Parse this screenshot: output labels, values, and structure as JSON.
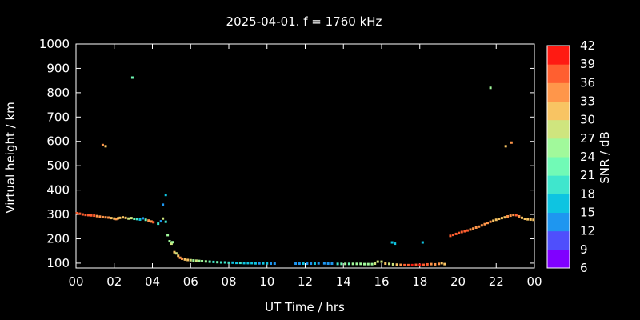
{
  "chart_data": {
    "type": "scatter",
    "title": "2025-04-01. f = 1760 kHz",
    "xlabel": "UT Time / hrs",
    "ylabel": "Virtual height / km",
    "colorbar_label": "SNR / dB",
    "xlim": [
      0,
      24
    ],
    "ylim": [
      80,
      1000
    ],
    "x_ticks": [
      "00",
      "02",
      "04",
      "06",
      "08",
      "10",
      "12",
      "14",
      "16",
      "18",
      "20",
      "22",
      "00"
    ],
    "y_ticks": [
      "100",
      "200",
      "300",
      "400",
      "500",
      "600",
      "700",
      "800",
      "900",
      "1000"
    ],
    "colorbar_ticks": [
      "6",
      "9",
      "12",
      "15",
      "18",
      "21",
      "24",
      "27",
      "30",
      "33",
      "36",
      "39",
      "42"
    ],
    "colorbar_colors": [
      "#8000ff",
      "#4f4ffc",
      "#1e96f0",
      "#0ec4e1",
      "#3fe6cd",
      "#71fab6",
      "#a1f99b",
      "#cfe57e",
      "#f8c463",
      "#ff964a",
      "#ff5f30",
      "#ff1a12"
    ],
    "grid": false,
    "series": [
      {
        "values_note": "x = UT hours, y = virtual height km, snr = dB",
        "points": [
          [
            0.05,
            305,
            37
          ],
          [
            0.2,
            303,
            38
          ],
          [
            0.35,
            300,
            38
          ],
          [
            0.5,
            298,
            37
          ],
          [
            0.65,
            297,
            37
          ],
          [
            0.8,
            296,
            36
          ],
          [
            0.95,
            295,
            36
          ],
          [
            1.1,
            293,
            35
          ],
          [
            1.25,
            291,
            34
          ],
          [
            1.4,
            289,
            34
          ],
          [
            1.55,
            288,
            33
          ],
          [
            1.7,
            287,
            33
          ],
          [
            1.85,
            285,
            32
          ],
          [
            2.0,
            283,
            32
          ],
          [
            2.1,
            281,
            33
          ],
          [
            2.2,
            284,
            31
          ],
          [
            2.3,
            286,
            30
          ],
          [
            2.45,
            288,
            31
          ],
          [
            2.6,
            286,
            30
          ],
          [
            2.75,
            283,
            29
          ],
          [
            2.9,
            285,
            28
          ],
          [
            3.05,
            282,
            22
          ],
          [
            3.2,
            281,
            19
          ],
          [
            3.35,
            279,
            16
          ],
          [
            3.5,
            284,
            14
          ],
          [
            3.65,
            278,
            21
          ],
          [
            3.8,
            275,
            33
          ],
          [
            3.95,
            271,
            35
          ],
          [
            4.05,
            268,
            37
          ],
          [
            4.3,
            262,
            18
          ],
          [
            4.45,
            272,
            13
          ],
          [
            4.55,
            283,
            27
          ],
          [
            4.7,
            270,
            20
          ],
          [
            4.8,
            215,
            24
          ],
          [
            4.9,
            190,
            26
          ],
          [
            5.0,
            180,
            28
          ],
          [
            5.05,
            186,
            25
          ],
          [
            5.15,
            145,
            30
          ],
          [
            5.25,
            140,
            27
          ],
          [
            5.35,
            130,
            32
          ],
          [
            5.45,
            122,
            35
          ],
          [
            5.55,
            118,
            33
          ],
          [
            5.7,
            115,
            31
          ],
          [
            5.85,
            113,
            30
          ],
          [
            6.0,
            112,
            28
          ],
          [
            6.15,
            111,
            26
          ],
          [
            6.3,
            110,
            27
          ],
          [
            6.45,
            109,
            25
          ],
          [
            6.6,
            108,
            24
          ],
          [
            6.8,
            107,
            25
          ],
          [
            7.0,
            106,
            22
          ],
          [
            7.2,
            105,
            20
          ],
          [
            7.4,
            104,
            21
          ],
          [
            7.6,
            103,
            19
          ],
          [
            7.8,
            103,
            20
          ],
          [
            8.0,
            102,
            18
          ],
          [
            8.2,
            102,
            17
          ],
          [
            8.4,
            101,
            16
          ],
          [
            8.6,
            101,
            18
          ],
          [
            8.8,
            100,
            15
          ],
          [
            9.0,
            100,
            17
          ],
          [
            9.2,
            100,
            16
          ],
          [
            9.4,
            99,
            15
          ],
          [
            9.6,
            99,
            14
          ],
          [
            9.8,
            99,
            16
          ],
          [
            10.0,
            99,
            15
          ],
          [
            10.2,
            98,
            14
          ],
          [
            10.4,
            98,
            13
          ],
          [
            11.5,
            98,
            14
          ],
          [
            11.7,
            98,
            13
          ],
          [
            11.9,
            98,
            15
          ],
          [
            12.1,
            98,
            14
          ],
          [
            12.3,
            98,
            13
          ],
          [
            12.5,
            98,
            15
          ],
          [
            12.7,
            99,
            12
          ],
          [
            13.0,
            99,
            13
          ],
          [
            13.2,
            98,
            14
          ],
          [
            13.4,
            98,
            12
          ],
          [
            13.7,
            97,
            20
          ],
          [
            13.9,
            97,
            22
          ],
          [
            14.1,
            97,
            24
          ],
          [
            14.3,
            97,
            23
          ],
          [
            14.5,
            97,
            25
          ],
          [
            14.7,
            97,
            24
          ],
          [
            14.9,
            97,
            26
          ],
          [
            15.1,
            96,
            25
          ],
          [
            15.3,
            96,
            24
          ],
          [
            15.5,
            96,
            26
          ],
          [
            15.65,
            98,
            27
          ],
          [
            15.8,
            106,
            29
          ],
          [
            16.0,
            106,
            28
          ],
          [
            16.2,
            98,
            30
          ],
          [
            16.4,
            97,
            28
          ],
          [
            16.6,
            95,
            29
          ],
          [
            16.8,
            94,
            32
          ],
          [
            17.0,
            93,
            34
          ],
          [
            17.2,
            92,
            36
          ],
          [
            17.4,
            92,
            38
          ],
          [
            17.6,
            92,
            39
          ],
          [
            17.8,
            93,
            38
          ],
          [
            18.0,
            93,
            39
          ],
          [
            18.2,
            93,
            38
          ],
          [
            18.4,
            95,
            36
          ],
          [
            18.6,
            96,
            35
          ],
          [
            18.8,
            95,
            33
          ],
          [
            19.0,
            97,
            34
          ],
          [
            19.15,
            100,
            31
          ],
          [
            19.3,
            96,
            32
          ],
          [
            19.6,
            212,
            38
          ],
          [
            19.75,
            216,
            38
          ],
          [
            19.9,
            220,
            37
          ],
          [
            20.05,
            224,
            37
          ],
          [
            20.2,
            228,
            36
          ],
          [
            20.35,
            231,
            36
          ],
          [
            20.5,
            234,
            36
          ],
          [
            20.65,
            238,
            35
          ],
          [
            20.8,
            242,
            35
          ],
          [
            20.95,
            246,
            34
          ],
          [
            21.1,
            250,
            34
          ],
          [
            21.25,
            255,
            34
          ],
          [
            21.4,
            260,
            33
          ],
          [
            21.55,
            265,
            33
          ],
          [
            21.7,
            270,
            33
          ],
          [
            21.85,
            274,
            32
          ],
          [
            22.0,
            278,
            32
          ],
          [
            22.15,
            282,
            32
          ],
          [
            22.3,
            285,
            31
          ],
          [
            22.45,
            288,
            32
          ],
          [
            22.6,
            292,
            33
          ],
          [
            22.75,
            295,
            34
          ],
          [
            22.9,
            298,
            35
          ],
          [
            23.05,
            297,
            36
          ],
          [
            23.2,
            292,
            33
          ],
          [
            23.35,
            286,
            31
          ],
          [
            23.5,
            282,
            30
          ],
          [
            23.65,
            280,
            31
          ],
          [
            23.8,
            279,
            32
          ],
          [
            23.95,
            278,
            31
          ],
          [
            1.4,
            585,
            33
          ],
          [
            1.55,
            580,
            30
          ],
          [
            2.95,
            862,
            22
          ],
          [
            4.55,
            340,
            12
          ],
          [
            4.7,
            380,
            17
          ],
          [
            16.55,
            185,
            17
          ],
          [
            16.7,
            180,
            16
          ],
          [
            18.15,
            185,
            15
          ],
          [
            21.7,
            820,
            25
          ],
          [
            22.5,
            580,
            31
          ],
          [
            22.8,
            595,
            35
          ]
        ]
      }
    ]
  }
}
